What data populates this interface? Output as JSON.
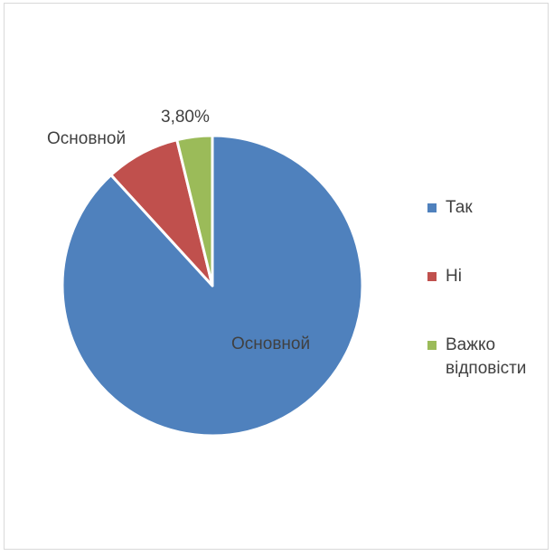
{
  "chart_data": {
    "type": "pie",
    "slices": [
      {
        "label": "Так",
        "value": 88.2,
        "color": "#4f81bd",
        "data_label": "Основной"
      },
      {
        "label": "Ні",
        "value": 8.0,
        "color": "#c0504d",
        "data_label": "Основной"
      },
      {
        "label": "Важко відповісти",
        "value": 3.8,
        "color": "#9bbb59",
        "data_label": "3,80%"
      }
    ],
    "start_angle_deg": 0,
    "direction": "clockwise",
    "legend_position": "right"
  }
}
